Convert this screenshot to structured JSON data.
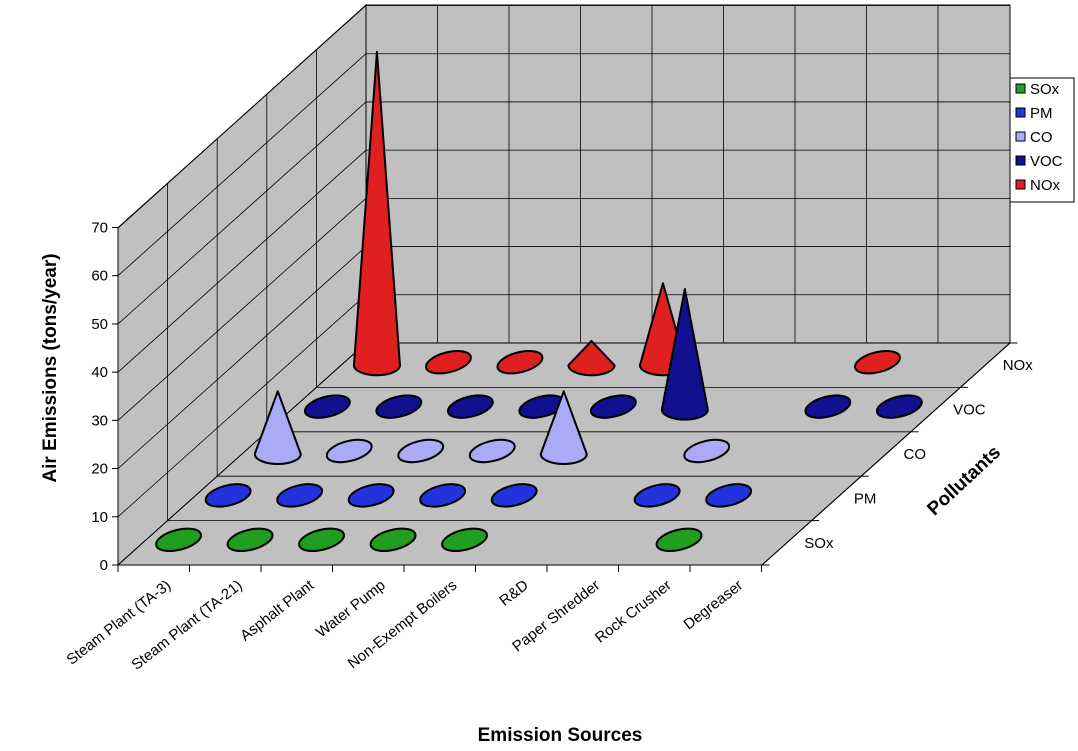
{
  "chart_data": {
    "type": "bar",
    "style": "3d-cone",
    "categories": [
      "Steam Plant (TA-3)",
      "Steam Plant (TA-21)",
      "Asphalt Plant",
      "Water Pump",
      "Non-Exempt Boilers",
      "R&D",
      "Paper Shredder",
      "Rock Crusher",
      "Degreaser"
    ],
    "series": [
      {
        "name": "SOx",
        "color": "#1f9e1f",
        "values": [
          1,
          1,
          1,
          1,
          1,
          null,
          null,
          1,
          null
        ]
      },
      {
        "name": "PM",
        "color": "#2233dd",
        "values": [
          1,
          1,
          1,
          1,
          1,
          null,
          1,
          1,
          null
        ]
      },
      {
        "name": "CO",
        "color": "#aaaaf6",
        "values": [
          13,
          1,
          1,
          1,
          13,
          null,
          1,
          null,
          null
        ]
      },
      {
        "name": "VOC",
        "color": "#101090",
        "values": [
          1,
          1,
          1,
          1,
          1,
          25,
          null,
          1,
          1
        ]
      },
      {
        "name": "NOx",
        "color": "#e02020",
        "values": [
          65,
          1,
          1,
          5,
          17,
          null,
          null,
          1,
          null
        ]
      }
    ],
    "xlabel": "Emission Sources",
    "ylabel": "Air Emissions (tons/year)",
    "zlabel": "Pollutants",
    "ylim": [
      0,
      70
    ],
    "yticks": [
      0,
      10,
      20,
      30,
      40,
      50,
      60,
      70
    ],
    "grid": true,
    "legend": "right"
  }
}
